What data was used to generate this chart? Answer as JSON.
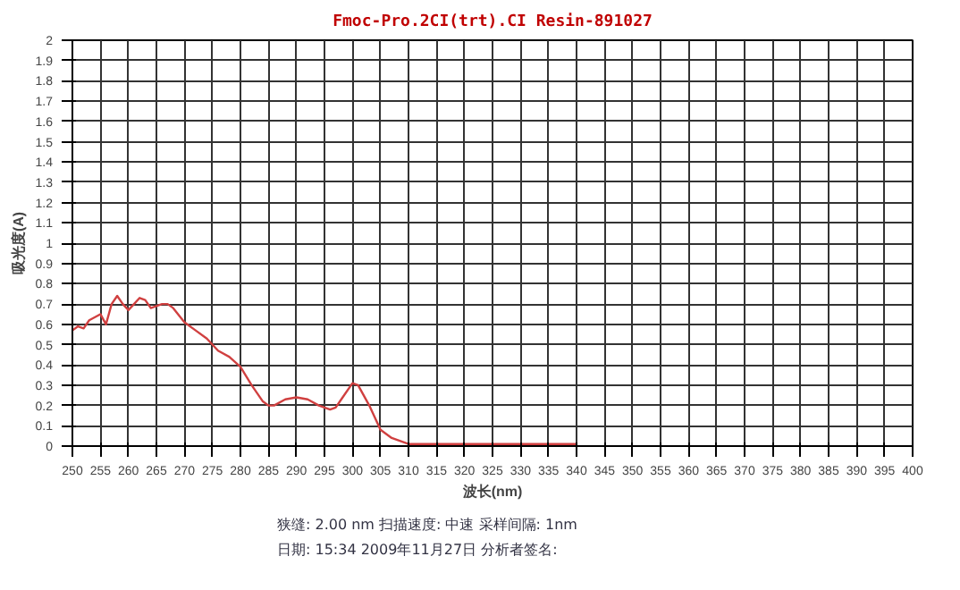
{
  "chart_data": {
    "type": "line",
    "title": "Fmoc-Pro.2CI(trt).CI Resin-891027",
    "xlabel": "波长(nm)",
    "ylabel": "吸光度(A)",
    "xlim": [
      250,
      400
    ],
    "ylim": [
      0,
      2
    ],
    "xticks": [
      250,
      255,
      260,
      265,
      270,
      275,
      280,
      285,
      290,
      295,
      300,
      305,
      310,
      315,
      320,
      325,
      330,
      335,
      340,
      345,
      350,
      355,
      360,
      365,
      370,
      375,
      380,
      385,
      390,
      395,
      400
    ],
    "yticks": [
      0,
      0.1,
      0.2,
      0.3,
      0.4,
      0.5,
      0.6,
      0.7,
      0.8,
      0.9,
      1,
      1.1,
      1.2,
      1.3,
      1.4,
      1.5,
      1.6,
      1.7,
      1.8,
      1.9,
      2
    ],
    "grid": true,
    "marker": "none",
    "line_style": "solid",
    "x": [
      250,
      251,
      252,
      253,
      255,
      256,
      257,
      258,
      259,
      260,
      261,
      262,
      263,
      264,
      265,
      266,
      267,
      268,
      270,
      272,
      274,
      276,
      278,
      280,
      282,
      284,
      285,
      286,
      288,
      290,
      292,
      294,
      296,
      297,
      298,
      300,
      301,
      303,
      305,
      307,
      310,
      315,
      320,
      330,
      340
    ],
    "series": [
      {
        "color": "#d04040",
        "values": [
          0.57,
          0.59,
          0.58,
          0.62,
          0.65,
          0.6,
          0.7,
          0.74,
          0.7,
          0.67,
          0.7,
          0.73,
          0.72,
          0.68,
          0.69,
          0.7,
          0.7,
          0.68,
          0.61,
          0.57,
          0.53,
          0.47,
          0.44,
          0.39,
          0.3,
          0.22,
          0.2,
          0.2,
          0.23,
          0.24,
          0.23,
          0.2,
          0.18,
          0.19,
          0.23,
          0.31,
          0.3,
          0.2,
          0.08,
          0.04,
          0.01,
          0.01,
          0.01,
          0.01,
          0.01
        ]
      }
    ],
    "annotations": [
      "狭缝:  2.00 nm    扫描速度:  中速    采样间隔:   1nm",
      "日期:  15:34  2009年11月27日    分析者签名:"
    ]
  }
}
